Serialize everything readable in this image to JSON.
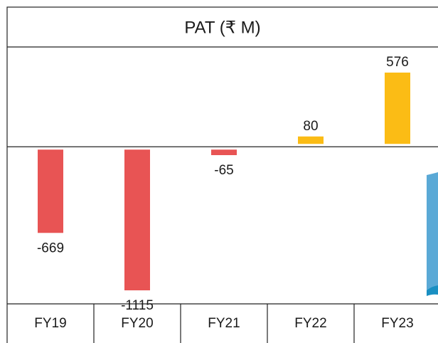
{
  "chart_data": {
    "type": "bar",
    "title": "PAT (₹ M)",
    "categories": [
      "FY19",
      "FY20",
      "FY21",
      "FY22",
      "FY23"
    ],
    "values": [
      -669,
      -1115,
      -65,
      80,
      576
    ],
    "colors": [
      "#e85454",
      "#e85454",
      "#e85454",
      "#fbbc15",
      "#fbbc15"
    ],
    "ylim": [
      -1220,
      775
    ]
  }
}
